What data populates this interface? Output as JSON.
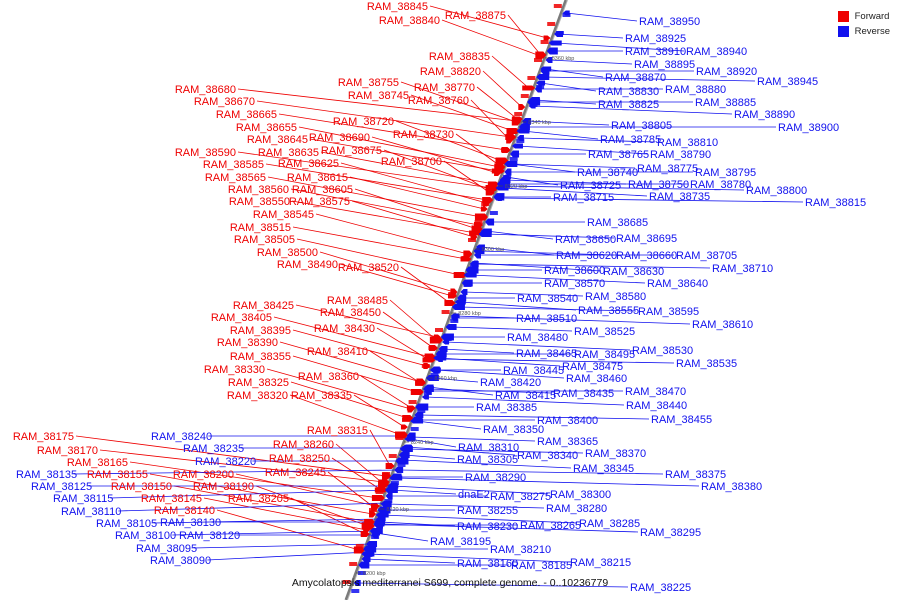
{
  "legend": {
    "forward_label": "Forward",
    "reverse_label": "Reverse",
    "forward_color": "#ee0000",
    "reverse_color": "#1111ee"
  },
  "caption": "Amycolatopsis mediterranei S699, complete genome. - 0..10236779",
  "scale_ticks": [
    "8360 kbp",
    "8340 kbp",
    "8320 kbp",
    "8300 kbp",
    "8280 kbp",
    "8260 kbp",
    "8240 kbp",
    "8220 kbp",
    "8200 kbp"
  ],
  "forward_labels": [
    "RAM_38845",
    "RAM_38840",
    "RAM_38875",
    "RAM_38835",
    "RAM_38820",
    "RAM_38755",
    "RAM_38770",
    "RAM_38745",
    "RAM_38760",
    "RAM_38680",
    "RAM_38670",
    "RAM_38720",
    "RAM_38730",
    "RAM_38665",
    "RAM_38655",
    "RAM_38645",
    "RAM_38690",
    "RAM_38675",
    "RAM_38635",
    "RAM_38590",
    "RAM_38625",
    "RAM_38700",
    "RAM_38585",
    "RAM_38565",
    "RAM_38615",
    "RAM_38560",
    "RAM_38605",
    "RAM_38550",
    "RAM_38575",
    "RAM_38545",
    "RAM_38515",
    "RAM_38505",
    "RAM_38500",
    "RAM_38490",
    "RAM_38520",
    "RAM_38485",
    "RAM_38425",
    "RAM_38450",
    "RAM_38405",
    "RAM_38430",
    "RAM_38395",
    "RAM_38390",
    "RAM_38410",
    "RAM_38355",
    "RAM_38330",
    "RAM_38360",
    "RAM_38325",
    "RAM_38320",
    "RAM_38335",
    "RAM_38315",
    "RAM_38260",
    "RAM_38250",
    "RAM_38245",
    "RAM_38175",
    "RAM_38170",
    "RAM_38165",
    "RAM_38155",
    "RAM_38200",
    "RAM_38150",
    "RAM_38190",
    "RAM_38145",
    "RAM_38205",
    "RAM_38140"
  ],
  "reverse_labels": [
    "RAM_38950",
    "RAM_38925",
    "RAM_38910",
    "RAM_38940",
    "RAM_38895",
    "RAM_38920",
    "RAM_38870",
    "RAM_38945",
    "RAM_38880",
    "RAM_38830",
    "RAM_38825",
    "RAM_38885",
    "RAM_38890",
    "RAM_38805",
    "RAM_38900",
    "RAM_38785",
    "RAM_38810",
    "RAM_38765",
    "RAM_38790",
    "RAM_38775",
    "RAM_38795",
    "RAM_38740",
    "RAM_38750",
    "RAM_38780",
    "RAM_38725",
    "RAM_38800",
    "RAM_38715",
    "RAM_38735",
    "RAM_38815",
    "RAM_38685",
    "RAM_38650",
    "RAM_38695",
    "RAM_38705",
    "RAM_38620",
    "RAM_38660",
    "RAM_38600",
    "RAM_38630",
    "RAM_38710",
    "RAM_38570",
    "RAM_38640",
    "RAM_38580",
    "RAM_38540",
    "RAM_38555",
    "RAM_38595",
    "RAM_38510",
    "RAM_38610",
    "RAM_38525",
    "RAM_38480",
    "RAM_38530",
    "RAM_38465",
    "RAM_38495",
    "RAM_38475",
    "RAM_38535",
    "RAM_38445",
    "RAM_38460",
    "RAM_38420",
    "RAM_38470",
    "RAM_38415",
    "RAM_38435",
    "RAM_38385",
    "RAM_38440",
    "RAM_38455",
    "RAM_38400",
    "RAM_38350",
    "RAM_38365",
    "RAM_38240",
    "RAM_38310",
    "RAM_38370",
    "RAM_38235",
    "RAM_38340",
    "RAM_38305",
    "RAM_38220",
    "RAM_38345",
    "RAM_38375",
    "RAM_38290",
    "RAM_38380",
    "RAM_38135",
    "RAM_38125",
    "RAM_38300",
    "dnaE2",
    "RAM_38275",
    "RAM_38115",
    "RAM_38280",
    "RAM_38255",
    "RAM_38110",
    "RAM_38105",
    "RAM_38130",
    "RAM_38285",
    "RAM_38230",
    "RAM_38265",
    "RAM_38295",
    "RAM_38100",
    "RAM_38120",
    "RAM_38195",
    "RAM_38095",
    "RAM_38210",
    "RAM_38090",
    "RAM_38160",
    "RAM_38185",
    "RAM_38215",
    "RAM_38225"
  ]
}
